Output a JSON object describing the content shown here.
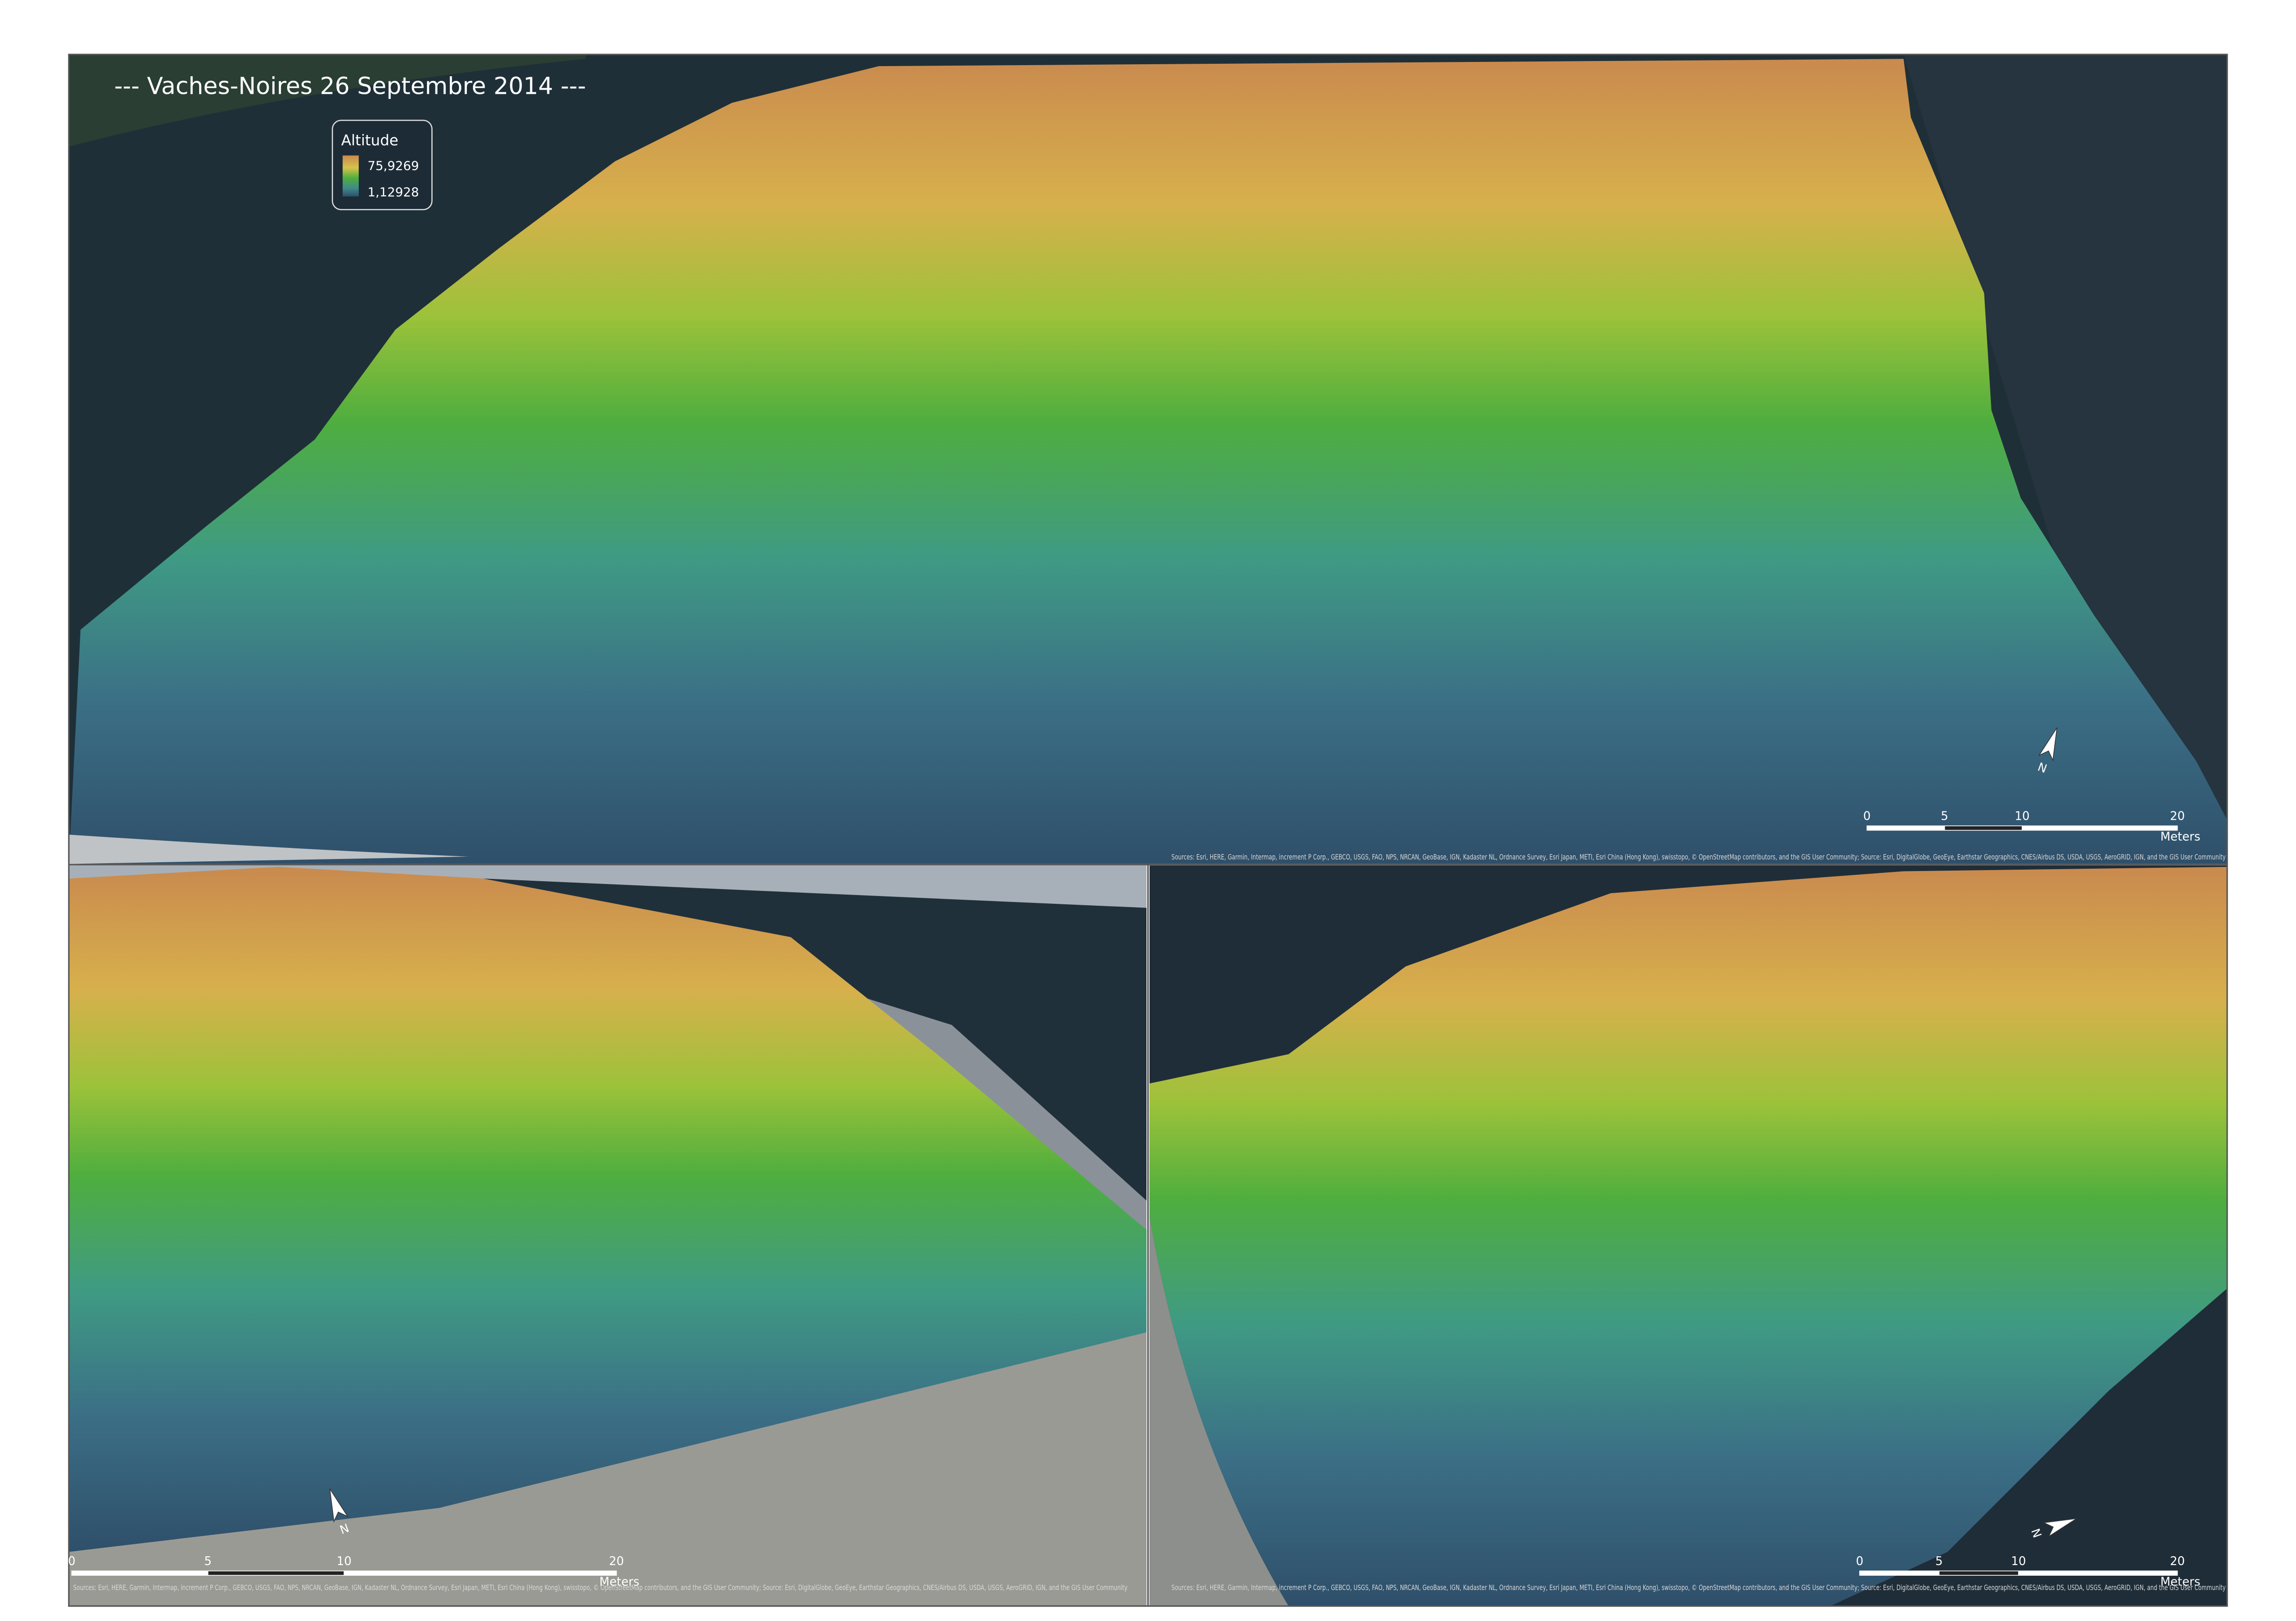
{
  "title": "--- Vaches-Noires 26 Septembre 2014 ---",
  "legend": {
    "title": "Altitude",
    "max": "75,9269",
    "min": "1,12928"
  },
  "credits": "Sources: Esri, HERE, Garmin, Intermap, increment P Corp., GEBCO, USGS, FAO, NPS, NRCAN, GeoBase, IGN, Kadaster NL, Ordnance Survey, Esri Japan, METI, Esri China (Hong Kong), swisstopo, © OpenStreetMap contributors, and the GIS User Community; Source: Esri, DigitalGlobe, GeoEye, Earthstar Geographics, CNES/Airbus DS, USDA, USGS, AeroGRID, IGN, and the GIS User Community",
  "panels": [
    {
      "north": "N",
      "scale_bar": {
        "ticks": [
          0,
          5,
          10,
          20
        ],
        "unit": "Meters"
      }
    },
    {
      "north": "N",
      "scale_bar": {
        "ticks": [
          0,
          5,
          10,
          20
        ],
        "unit": "Meters"
      }
    },
    {
      "north": "N",
      "scale_bar": {
        "ticks": [
          0,
          5,
          10,
          20
        ],
        "unit": "Meters"
      }
    }
  ]
}
